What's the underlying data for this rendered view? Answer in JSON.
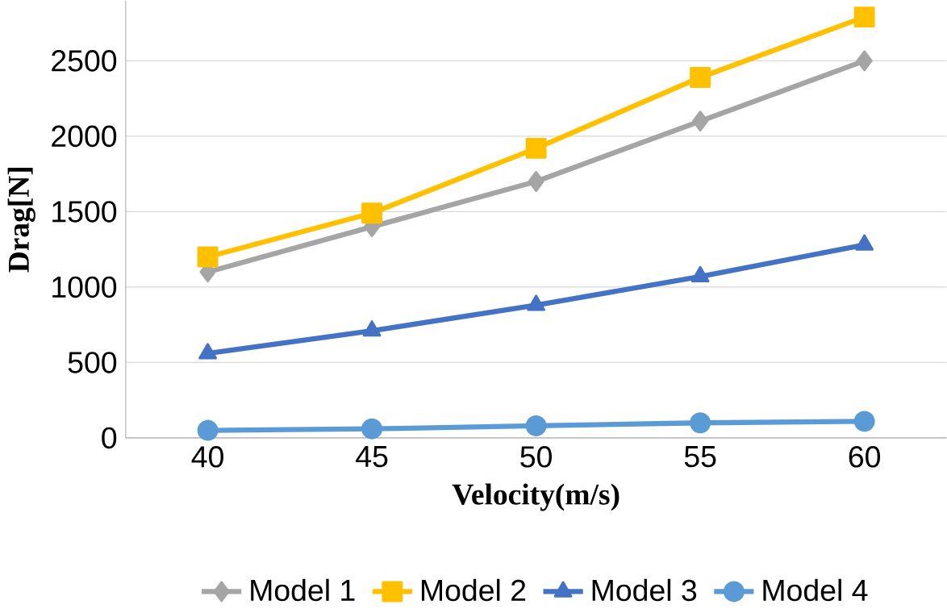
{
  "chart_data": {
    "type": "line",
    "xlabel": "Velocity(m/s)",
    "ylabel": "Drag[N]",
    "categories": [
      "40",
      "45",
      "50",
      "55",
      "60"
    ],
    "series": [
      {
        "name": "Model 1",
        "color": "#a5a5a5",
        "marker": "diamond",
        "values": [
          1100,
          1400,
          1700,
          2100,
          2500
        ]
      },
      {
        "name": "Model 2",
        "color": "#ffc000",
        "marker": "square",
        "values": [
          1200,
          1490,
          1920,
          2390,
          2790
        ]
      },
      {
        "name": "Model 3",
        "color": "#4472c4",
        "marker": "triangle",
        "values": [
          560,
          710,
          880,
          1070,
          1280
        ]
      },
      {
        "name": "Model 4",
        "color": "#5b9bd5",
        "marker": "circle",
        "values": [
          50,
          60,
          80,
          100,
          110
        ]
      }
    ],
    "ylim": [
      0,
      2900
    ],
    "yticks": [
      0,
      500,
      1000,
      1500,
      2000,
      2500
    ],
    "grid": "y",
    "legend": "bottom",
    "line_style": "solid"
  }
}
